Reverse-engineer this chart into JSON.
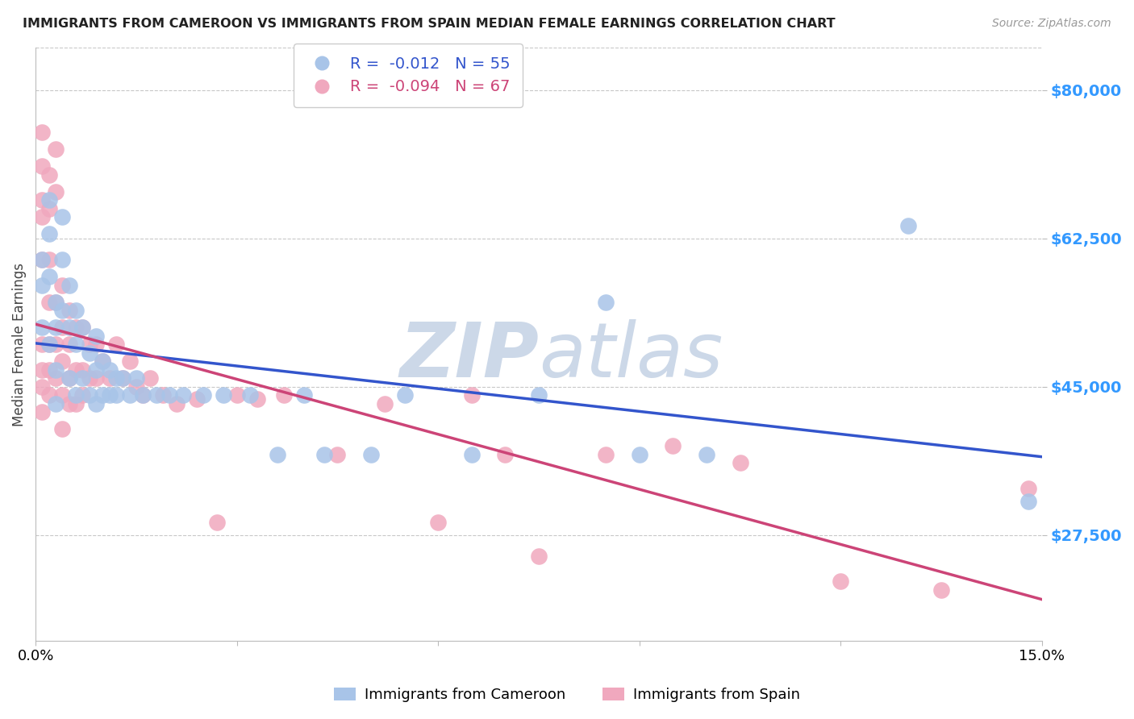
{
  "title": "IMMIGRANTS FROM CAMEROON VS IMMIGRANTS FROM SPAIN MEDIAN FEMALE EARNINGS CORRELATION CHART",
  "source": "Source: ZipAtlas.com",
  "ylabel": "Median Female Earnings",
  "ytick_labels": [
    "$27,500",
    "$45,000",
    "$62,500",
    "$80,000"
  ],
  "ytick_values": [
    27500,
    45000,
    62500,
    80000
  ],
  "ymin": 15000,
  "ymax": 85000,
  "xmin": 0.0,
  "xmax": 0.15,
  "legend1_r": "-0.012",
  "legend1_n": "55",
  "legend2_r": "-0.094",
  "legend2_n": "67",
  "cameroon_color": "#a8c4e8",
  "spain_color": "#f0a8be",
  "trendline_cameroon_color": "#3355cc",
  "trendline_spain_color": "#cc4477",
  "watermark_color": "#ccd8e8",
  "background_color": "#ffffff",
  "grid_color": "#c8c8c8",
  "ytick_color": "#3399ff",
  "cameroon_x": [
    0.001,
    0.001,
    0.001,
    0.002,
    0.002,
    0.002,
    0.002,
    0.003,
    0.003,
    0.003,
    0.003,
    0.004,
    0.004,
    0.004,
    0.005,
    0.005,
    0.005,
    0.006,
    0.006,
    0.006,
    0.007,
    0.007,
    0.008,
    0.008,
    0.009,
    0.009,
    0.009,
    0.01,
    0.01,
    0.011,
    0.011,
    0.012,
    0.012,
    0.013,
    0.014,
    0.015,
    0.016,
    0.018,
    0.02,
    0.022,
    0.025,
    0.028,
    0.032,
    0.036,
    0.04,
    0.043,
    0.05,
    0.055,
    0.065,
    0.075,
    0.085,
    0.09,
    0.1,
    0.13,
    0.148
  ],
  "cameroon_y": [
    60000,
    57000,
    52000,
    67000,
    63000,
    58000,
    50000,
    55000,
    52000,
    47000,
    43000,
    65000,
    60000,
    54000,
    57000,
    52000,
    46000,
    54000,
    50000,
    44000,
    52000,
    46000,
    49000,
    44000,
    51000,
    47000,
    43000,
    48000,
    44000,
    47000,
    44000,
    46000,
    44000,
    46000,
    44000,
    46000,
    44000,
    44000,
    44000,
    44000,
    44000,
    44000,
    44000,
    37000,
    44000,
    37000,
    37000,
    44000,
    37000,
    44000,
    55000,
    37000,
    37000,
    64000,
    31500
  ],
  "spain_x": [
    0.001,
    0.001,
    0.001,
    0.001,
    0.001,
    0.001,
    0.001,
    0.001,
    0.001,
    0.002,
    0.002,
    0.002,
    0.002,
    0.002,
    0.002,
    0.002,
    0.003,
    0.003,
    0.003,
    0.003,
    0.003,
    0.004,
    0.004,
    0.004,
    0.004,
    0.004,
    0.005,
    0.005,
    0.005,
    0.005,
    0.006,
    0.006,
    0.006,
    0.007,
    0.007,
    0.007,
    0.008,
    0.008,
    0.009,
    0.009,
    0.01,
    0.011,
    0.012,
    0.013,
    0.014,
    0.015,
    0.016,
    0.017,
    0.019,
    0.021,
    0.024,
    0.027,
    0.03,
    0.033,
    0.037,
    0.045,
    0.052,
    0.06,
    0.065,
    0.07,
    0.075,
    0.085,
    0.095,
    0.105,
    0.12,
    0.135,
    0.148
  ],
  "spain_y": [
    75000,
    71000,
    67000,
    65000,
    60000,
    50000,
    47000,
    45000,
    42000,
    70000,
    66000,
    60000,
    55000,
    50000,
    47000,
    44000,
    73000,
    68000,
    55000,
    50000,
    46000,
    57000,
    52000,
    48000,
    44000,
    40000,
    54000,
    50000,
    46000,
    43000,
    52000,
    47000,
    43000,
    52000,
    47000,
    44000,
    50000,
    46000,
    50000,
    46000,
    48000,
    46000,
    50000,
    46000,
    48000,
    45000,
    44000,
    46000,
    44000,
    43000,
    43500,
    29000,
    44000,
    43500,
    44000,
    37000,
    43000,
    29000,
    44000,
    37000,
    25000,
    37000,
    38000,
    36000,
    22000,
    21000,
    33000
  ]
}
